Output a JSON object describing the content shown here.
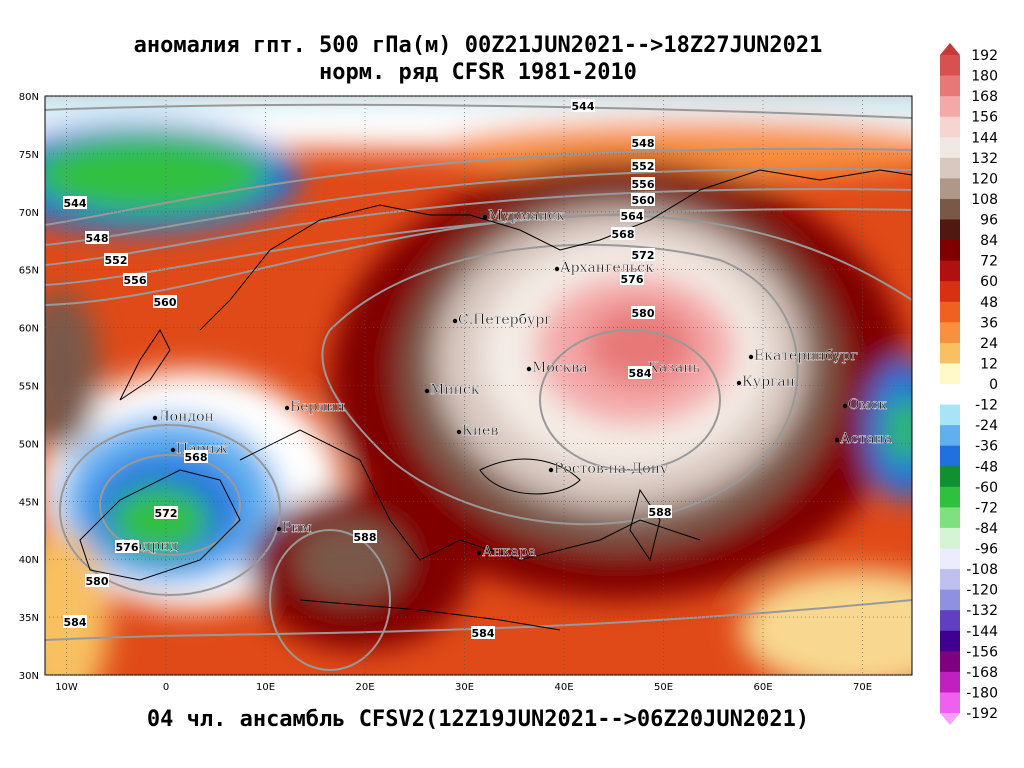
{
  "header": {
    "title": "аномалия гпт. 500 гПа(м) 00Z21JUN2021-->18Z27JUN2021",
    "subtitle": "норм. ряд CFSR 1981-2010"
  },
  "footer": {
    "caption": "04 чл. ансамбль CFSV2(12Z19JUN2021-->06Z20JUN2021)"
  },
  "map": {
    "lat_ticks": [
      {
        "value": 80,
        "label": "80N"
      },
      {
        "value": 75,
        "label": "75N"
      },
      {
        "value": 70,
        "label": "70N"
      },
      {
        "value": 65,
        "label": "65N"
      },
      {
        "value": 60,
        "label": "60N"
      },
      {
        "value": 55,
        "label": "55N"
      },
      {
        "value": 50,
        "label": "50N"
      },
      {
        "value": 45,
        "label": "45N"
      },
      {
        "value": 40,
        "label": "40N"
      },
      {
        "value": 35,
        "label": "35N"
      },
      {
        "value": 30,
        "label": "30N"
      }
    ],
    "lon_ticks": [
      {
        "value": -10,
        "label": "10W"
      },
      {
        "value": 0,
        "label": "0"
      },
      {
        "value": 10,
        "label": "10E"
      },
      {
        "value": 20,
        "label": "20E"
      },
      {
        "value": 30,
        "label": "30E"
      },
      {
        "value": 40,
        "label": "40E"
      },
      {
        "value": 50,
        "label": "50E"
      },
      {
        "value": 60,
        "label": "60E"
      },
      {
        "value": 70,
        "label": "70E"
      }
    ],
    "cities": [
      "Мурманск",
      "Архангельск",
      "С.Петербург",
      "Москва",
      "Казань",
      "Екатеринбург",
      "Курган",
      "Омск",
      "Астана",
      "Минск",
      "Берлин",
      "Лондон",
      "Париж",
      "Киев",
      "Ростов-на-Дону",
      "Рим",
      "Мадрид",
      "Анкара"
    ],
    "contour_labels": [
      "544",
      "548",
      "552",
      "556",
      "560",
      "564",
      "568",
      "572",
      "576",
      "580",
      "584",
      "588",
      "544",
      "548",
      "552",
      "556",
      "560",
      "568",
      "572",
      "576",
      "580",
      "584",
      "588",
      "584"
    ]
  },
  "colorbar": {
    "labels": [
      192,
      180,
      168,
      156,
      144,
      132,
      120,
      108,
      96,
      84,
      72,
      60,
      48,
      36,
      24,
      12,
      0,
      -12,
      -24,
      -36,
      -48,
      -60,
      -72,
      -84,
      -96,
      -108,
      -120,
      -132,
      -144,
      -156,
      -168,
      -180,
      -192
    ],
    "colors": [
      "#c83838",
      "#d85050",
      "#e87878",
      "#f4a8a8",
      "#f8d4d0",
      "#f0e8e4",
      "#d8c8c0",
      "#b09888",
      "#7a5848",
      "#501810",
      "#800000",
      "#b01010",
      "#d83010",
      "#f06020",
      "#f89040",
      "#f8c060",
      "#fff8c8",
      "#ffffff",
      "#a8e4f8",
      "#60b0f0",
      "#2070e0",
      "#109030",
      "#30c040",
      "#80e080",
      "#d4f4d4",
      "#ececff",
      "#c0c0f0",
      "#9090e0",
      "#6040c0",
      "#400090",
      "#800080",
      "#c020c0",
      "#f060f0",
      "#f8a0f8"
    ]
  }
}
